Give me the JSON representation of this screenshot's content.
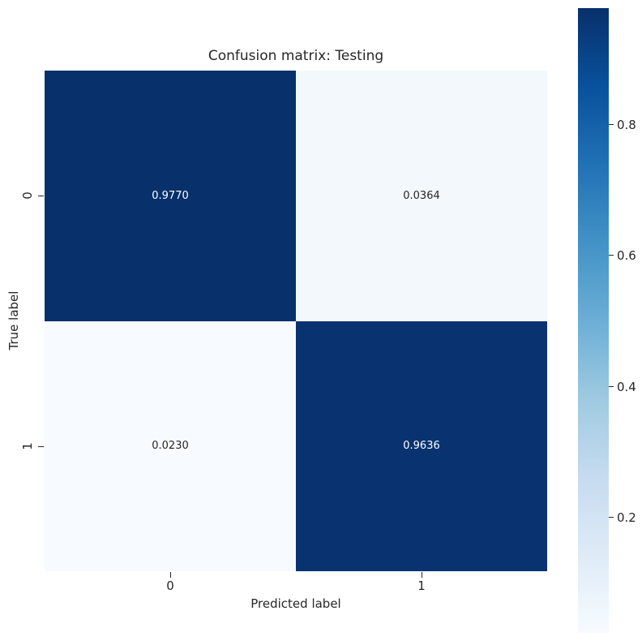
{
  "chart_data": {
    "type": "heatmap",
    "title": "Confusion matrix: Testing",
    "xlabel": "Predicted label",
    "ylabel": "True label",
    "x_tick_labels": [
      "0",
      "1"
    ],
    "y_tick_labels": [
      "0",
      "1"
    ],
    "categories_x": [
      "0",
      "1"
    ],
    "categories_y": [
      "0",
      "1"
    ],
    "values": [
      [
        0.977,
        0.0364
      ],
      [
        0.023,
        0.9636
      ]
    ],
    "cell_labels": [
      [
        "0.9770",
        "0.0364"
      ],
      [
        "0.0230",
        "0.9636"
      ]
    ],
    "cell_colors": [
      [
        "#08306b",
        "#f3f8fd"
      ],
      [
        "#f7fbff",
        "#083370"
      ]
    ],
    "cell_text_colors": [
      [
        "#ffffff",
        "#262626"
      ],
      [
        "#262626",
        "#ffffff"
      ]
    ],
    "colormap": "Blues",
    "grid": false,
    "colorbar": {
      "position": "right",
      "value_range": [
        0.023,
        0.977
      ],
      "tick_labels": {
        "t08": "0.8",
        "t06": "0.6",
        "t04": "0.4",
        "t02": "0.2"
      },
      "gradient_top_to_bottom": [
        "#08306b",
        "#08519c",
        "#2171b5",
        "#4292c6",
        "#6baed6",
        "#9ecae1",
        "#c6dbef",
        "#deebf7",
        "#f7fbff"
      ]
    },
    "colors": {
      "background": "#ffffff",
      "text": "#262626",
      "max_blue": "#08306b",
      "min_blue": "#f7fbff"
    }
  }
}
